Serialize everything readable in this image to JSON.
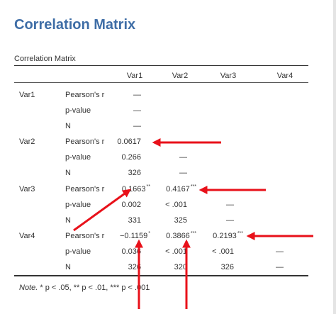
{
  "title": "Correlation Matrix",
  "table_caption": "Correlation Matrix",
  "columns": [
    "Var1",
    "Var2",
    "Var3",
    "Var4"
  ],
  "rows": [
    {
      "var": "Var1",
      "stats": [
        {
          "label": "Pearson's r",
          "cells": [
            {
              "v": "—",
              "sig": ""
            },
            {
              "v": "",
              "sig": ""
            },
            {
              "v": "",
              "sig": ""
            },
            {
              "v": "",
              "sig": ""
            }
          ]
        },
        {
          "label": "p-value",
          "cells": [
            {
              "v": "—",
              "sig": ""
            },
            {
              "v": "",
              "sig": ""
            },
            {
              "v": "",
              "sig": ""
            },
            {
              "v": "",
              "sig": ""
            }
          ]
        },
        {
          "label": "N",
          "cells": [
            {
              "v": "—",
              "sig": ""
            },
            {
              "v": "",
              "sig": ""
            },
            {
              "v": "",
              "sig": ""
            },
            {
              "v": "",
              "sig": ""
            }
          ]
        }
      ]
    },
    {
      "var": "Var2",
      "stats": [
        {
          "label": "Pearson's r",
          "cells": [
            {
              "v": "0.0617",
              "sig": ""
            },
            {
              "v": "—",
              "sig": ""
            },
            {
              "v": "",
              "sig": ""
            },
            {
              "v": "",
              "sig": ""
            }
          ]
        },
        {
          "label": "p-value",
          "cells": [
            {
              "v": "0.266",
              "sig": ""
            },
            {
              "v": "—",
              "sig": ""
            },
            {
              "v": "",
              "sig": ""
            },
            {
              "v": "",
              "sig": ""
            }
          ]
        },
        {
          "label": "N",
          "cells": [
            {
              "v": "326",
              "sig": ""
            },
            {
              "v": "—",
              "sig": ""
            },
            {
              "v": "",
              "sig": ""
            },
            {
              "v": "",
              "sig": ""
            }
          ]
        }
      ]
    },
    {
      "var": "Var3",
      "stats": [
        {
          "label": "Pearson's r",
          "cells": [
            {
              "v": "0.1663",
              "sig": "**"
            },
            {
              "v": "0.4167",
              "sig": "***"
            },
            {
              "v": "—",
              "sig": ""
            },
            {
              "v": "",
              "sig": ""
            }
          ]
        },
        {
          "label": "p-value",
          "cells": [
            {
              "v": "0.002",
              "sig": ""
            },
            {
              "v": "< .001",
              "sig": ""
            },
            {
              "v": "—",
              "sig": ""
            },
            {
              "v": "",
              "sig": ""
            }
          ]
        },
        {
          "label": "N",
          "cells": [
            {
              "v": "331",
              "sig": ""
            },
            {
              "v": "325",
              "sig": ""
            },
            {
              "v": "—",
              "sig": ""
            },
            {
              "v": "",
              "sig": ""
            }
          ]
        }
      ]
    },
    {
      "var": "Var4",
      "stats": [
        {
          "label": "Pearson's r",
          "cells": [
            {
              "v": "−0.1159",
              "sig": "*"
            },
            {
              "v": "0.3866",
              "sig": "***"
            },
            {
              "v": "0.2193",
              "sig": "***"
            },
            {
              "v": "—",
              "sig": ""
            }
          ]
        },
        {
          "label": "p-value",
          "cells": [
            {
              "v": "0.036",
              "sig": ""
            },
            {
              "v": "< .001",
              "sig": ""
            },
            {
              "v": "< .001",
              "sig": ""
            },
            {
              "v": "—",
              "sig": ""
            }
          ]
        },
        {
          "label": "N",
          "cells": [
            {
              "v": "326",
              "sig": ""
            },
            {
              "v": "320",
              "sig": ""
            },
            {
              "v": "326",
              "sig": ""
            },
            {
              "v": "—",
              "sig": ""
            }
          ]
        }
      ]
    }
  ],
  "note": {
    "label": "Note.",
    "text": " * p < .05, ** p < .01, *** p < .001"
  },
  "annotation_color": "#e8111a"
}
